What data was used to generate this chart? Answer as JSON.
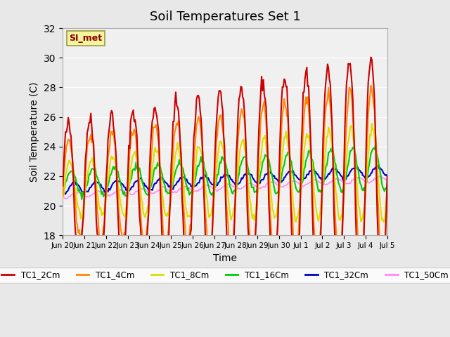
{
  "title": "Soil Temperatures Set 1",
  "xlabel": "Time",
  "ylabel": "Soil Temperature (C)",
  "ylim": [
    18,
    32
  ],
  "yticks": [
    18,
    20,
    22,
    24,
    26,
    28,
    30,
    32
  ],
  "background_color": "#e8e8e8",
  "plot_bg_color": "#f0f0f0",
  "annotation_text": "SI_met",
  "annotation_color": "#8B0000",
  "annotation_bg": "#f5f5a0",
  "series_colors": {
    "TC1_2Cm": "#cc0000",
    "TC1_4Cm": "#ff8800",
    "TC1_8Cm": "#dddd00",
    "TC1_16Cm": "#00cc00",
    "TC1_32Cm": "#0000cc",
    "TC1_50Cm": "#ff88ff"
  },
  "xtick_labels": [
    "Jun 20",
    "Jun 21",
    "Jun 22",
    "Jun 23",
    "Jun 24",
    "Jun 25",
    "Jun 26",
    "Jun 27",
    "Jun 28",
    "Jun 29",
    "Jun 30",
    "Jul 1",
    "Jul 2",
    "Jul 3",
    "Jul 4",
    "Jul 5"
  ],
  "xtick_positions": [
    0,
    1,
    2,
    3,
    4,
    5,
    6,
    7,
    8,
    9,
    10,
    11,
    12,
    13,
    14,
    15
  ]
}
